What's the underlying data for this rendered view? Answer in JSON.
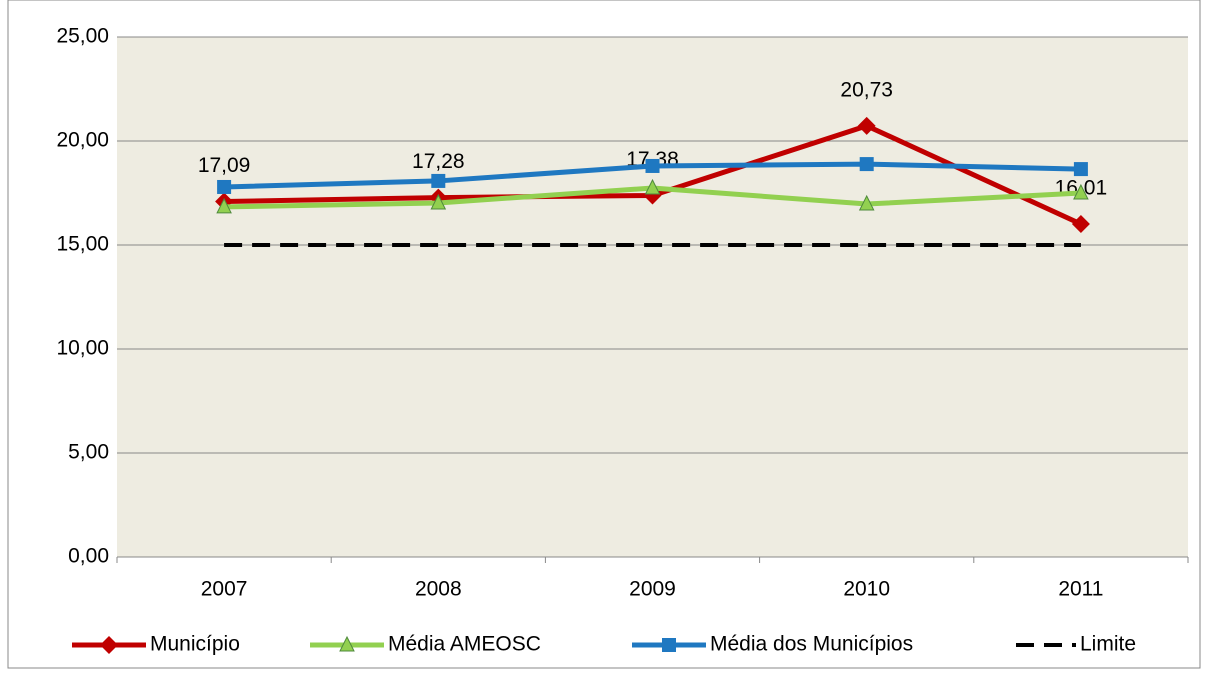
{
  "chart_data": {
    "type": "line",
    "categories": [
      "2007",
      "2008",
      "2009",
      "2010",
      "2011"
    ],
    "series": [
      {
        "name": "Município",
        "color": "#c00000",
        "marker": "diamond",
        "values": [
          17.09,
          17.28,
          17.38,
          20.73,
          16.01
        ],
        "value_labels": [
          "17,09",
          "17,28",
          "17,38",
          "20,73",
          "16,01"
        ]
      },
      {
        "name": "Média AMEOSC",
        "color": "#92d050",
        "marker": "triangle",
        "values": [
          16.83,
          17.02,
          17.74,
          16.97,
          17.5
        ]
      },
      {
        "name": "Média dos Municípios",
        "color": "#1f78c1",
        "marker": "square",
        "values": [
          17.79,
          18.08,
          18.8,
          18.89,
          18.65
        ]
      },
      {
        "name": "Limite",
        "color": "#000000",
        "dashed": true,
        "values": [
          15,
          15,
          15,
          15,
          15
        ]
      }
    ],
    "ylim": [
      0,
      25
    ],
    "yticks": [
      {
        "value": 0,
        "label": "0,00"
      },
      {
        "value": 5,
        "label": "5,00"
      },
      {
        "value": 10,
        "label": "10,00"
      },
      {
        "value": 15,
        "label": "15,00"
      },
      {
        "value": 20,
        "label": "20,00"
      },
      {
        "value": 25,
        "label": "25,00"
      }
    ],
    "grid": true,
    "legend": "bottom"
  }
}
